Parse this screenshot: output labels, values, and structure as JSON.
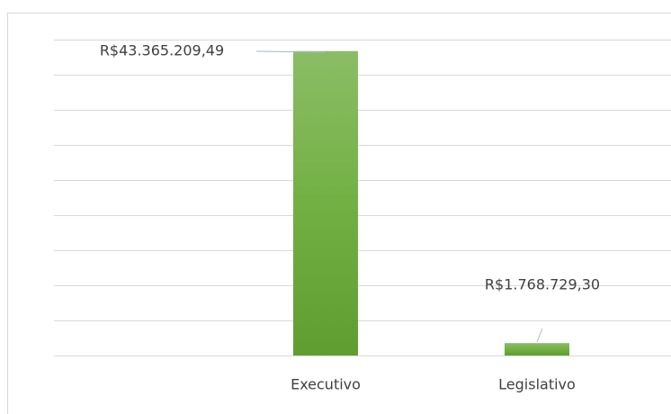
{
  "chart_data": {
    "type": "bar",
    "categories": [
      "Executivo",
      "Legislativo"
    ],
    "values": [
      43365209.49,
      1768729.3
    ],
    "value_labels": [
      "R$43.365.209,49",
      "R$1.768.729,30"
    ],
    "color": "#70ad47",
    "ylim": [
      0,
      45000000
    ],
    "yticks": [
      0,
      5000000,
      10000000,
      15000000,
      20000000,
      25000000,
      30000000,
      35000000,
      40000000,
      45000000
    ],
    "grid": true
  }
}
